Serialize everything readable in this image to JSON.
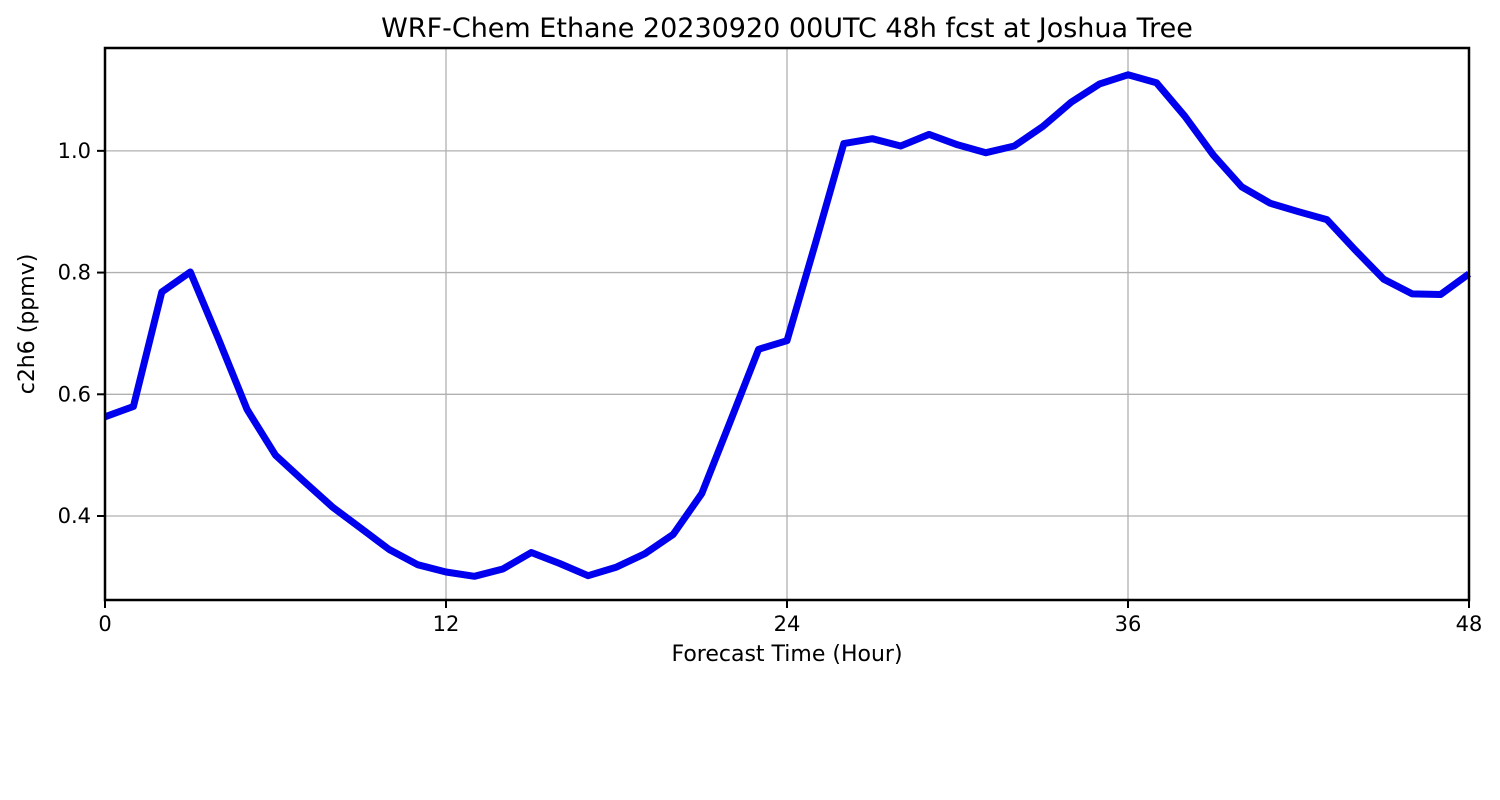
{
  "chart_data": {
    "type": "line",
    "title": "WRF-Chem Ethane  20230920 00UTC 48h fcst at Joshua Tree",
    "xlabel": "Forecast Time (Hour)",
    "ylabel": "c2h6  (ppmv)",
    "x": [
      0,
      1,
      2,
      3,
      4,
      5,
      6,
      7,
      8,
      9,
      10,
      11,
      12,
      13,
      14,
      15,
      16,
      17,
      18,
      19,
      20,
      21,
      22,
      23,
      24,
      25,
      26,
      27,
      28,
      29,
      30,
      31,
      32,
      33,
      34,
      35,
      36,
      37,
      38,
      39,
      40,
      41,
      42,
      43,
      44,
      45,
      46,
      47,
      48
    ],
    "series": [
      {
        "name": "c2h6",
        "values": [
          0.563,
          0.58,
          0.768,
          0.801,
          0.69,
          0.575,
          0.5,
          0.457,
          0.415,
          0.38,
          0.345,
          0.32,
          0.308,
          0.301,
          0.313,
          0.34,
          0.322,
          0.302,
          0.316,
          0.338,
          0.37,
          0.437,
          0.555,
          0.674,
          0.688,
          0.848,
          1.012,
          1.02,
          1.008,
          1.027,
          1.01,
          0.997,
          1.008,
          1.04,
          1.08,
          1.11,
          1.125,
          1.112,
          1.057,
          0.993,
          0.941,
          0.914,
          0.9,
          0.887,
          0.837,
          0.789,
          0.765,
          0.764,
          0.798
        ]
      }
    ],
    "xlim": [
      0,
      48
    ],
    "ylim": [
      0.262,
      1.169
    ],
    "xticks": [
      0,
      12,
      24,
      36,
      48
    ],
    "yticks": [
      0.4,
      0.6,
      0.8,
      1.0
    ],
    "grid": true,
    "legend_position": "none",
    "line_color": "#0000ee",
    "line_width": 7,
    "grid_color": "#b0b0b0",
    "axis_color": "#000000",
    "background": "#ffffff"
  }
}
